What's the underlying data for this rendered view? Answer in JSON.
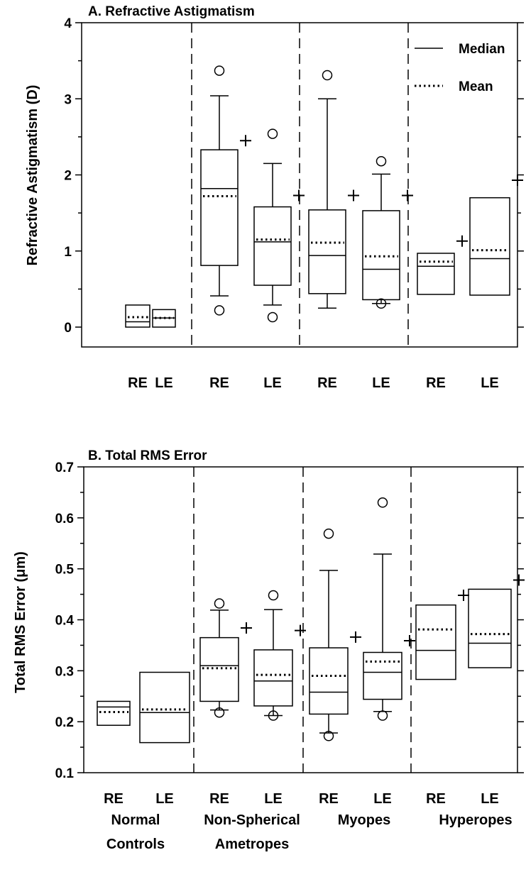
{
  "chart_data": [
    {
      "type": "box",
      "title": "A. Refractive Astigmatism",
      "ylabel": "Refractive Astigmatism (D)",
      "ylim": [
        -0.25,
        4
      ],
      "yticks": [
        0,
        1,
        2,
        3,
        4
      ],
      "categories": [
        "RE",
        "LE",
        "RE",
        "LE",
        "RE",
        "LE",
        "RE",
        "LE"
      ],
      "legend": {
        "median": "Median",
        "mean": "Mean",
        "position": "top-right"
      },
      "boxes": [
        {
          "q1": 0.0,
          "median": 0.07,
          "q3": 0.29,
          "mean": 0.13,
          "whisker_low": null,
          "whisker_high": null,
          "outliers": [],
          "max_marker": null
        },
        {
          "q1": 0.0,
          "median": 0.12,
          "q3": 0.23,
          "mean": 0.12,
          "whisker_low": null,
          "whisker_high": null,
          "outliers": [],
          "max_marker": null
        },
        {
          "q1": 0.81,
          "median": 1.82,
          "q3": 2.33,
          "mean": 1.72,
          "whisker_low": 0.41,
          "whisker_high": 3.04,
          "outliers": [
            0.22,
            3.37
          ],
          "max_marker": 2.45
        },
        {
          "q1": 0.55,
          "median": 1.12,
          "q3": 1.58,
          "mean": 1.15,
          "whisker_low": 0.29,
          "whisker_high": 2.15,
          "outliers": [
            0.13,
            2.54
          ],
          "max_marker": 1.73
        },
        {
          "q1": 0.44,
          "median": 0.94,
          "q3": 1.54,
          "mean": 1.11,
          "whisker_low": 0.25,
          "whisker_high": 3.0,
          "outliers": [
            3.31
          ],
          "max_marker": 1.73
        },
        {
          "q1": 0.36,
          "median": 0.76,
          "q3": 1.53,
          "mean": 0.93,
          "whisker_low": 0.31,
          "whisker_high": 2.01,
          "outliers": [
            0.31,
            2.18
          ],
          "max_marker": 1.73
        },
        {
          "q1": 0.43,
          "median": 0.8,
          "q3": 0.97,
          "mean": 0.86,
          "whisker_low": null,
          "whisker_high": null,
          "outliers": [],
          "max_marker": 1.13
        },
        {
          "q1": 0.42,
          "median": 0.9,
          "q3": 1.7,
          "mean": 1.01,
          "whisker_low": null,
          "whisker_high": null,
          "outliers": [],
          "max_marker": 1.93
        }
      ]
    },
    {
      "type": "box",
      "title": "B. Total RMS Error",
      "ylabel": "Total RMS Error (μm)",
      "ylim": [
        0.1,
        0.7
      ],
      "yticks": [
        "0.1",
        "0.2",
        "0.3",
        "0.4",
        "0.5",
        "0.6",
        "0.7"
      ],
      "categories": [
        "RE",
        "LE",
        "RE",
        "LE",
        "RE",
        "LE",
        "RE",
        "LE"
      ],
      "groups": [
        {
          "line1": "Normal",
          "line2": "Controls"
        },
        {
          "line1": "Non-Spherical",
          "line2": "Ametropes"
        },
        {
          "line1": "Myopes",
          "line2": ""
        },
        {
          "line1": "Hyperopes",
          "line2": ""
        }
      ],
      "boxes": [
        {
          "q1": 0.193,
          "median": 0.229,
          "q3": 0.24,
          "mean": 0.219,
          "whisker_low": null,
          "whisker_high": null,
          "outliers": [],
          "max_marker": null
        },
        {
          "q1": 0.159,
          "median": 0.218,
          "q3": 0.297,
          "mean": 0.224,
          "whisker_low": null,
          "whisker_high": null,
          "outliers": [],
          "max_marker": null
        },
        {
          "q1": 0.24,
          "median": 0.31,
          "q3": 0.365,
          "mean": 0.305,
          "whisker_low": 0.223,
          "whisker_high": 0.419,
          "outliers": [
            0.218,
            0.432
          ],
          "max_marker": 0.384
        },
        {
          "q1": 0.231,
          "median": 0.28,
          "q3": 0.341,
          "mean": 0.292,
          "whisker_low": 0.212,
          "whisker_high": 0.42,
          "outliers": [
            0.212,
            0.448
          ],
          "max_marker": 0.379
        },
        {
          "q1": 0.215,
          "median": 0.258,
          "q3": 0.345,
          "mean": 0.29,
          "whisker_low": 0.178,
          "whisker_high": 0.497,
          "outliers": [
            0.172,
            0.569
          ],
          "max_marker": 0.366
        },
        {
          "q1": 0.244,
          "median": 0.297,
          "q3": 0.336,
          "mean": 0.318,
          "whisker_low": 0.22,
          "whisker_high": 0.529,
          "outliers": [
            0.212,
            0.63
          ],
          "max_marker": 0.359
        },
        {
          "q1": 0.283,
          "median": 0.34,
          "q3": 0.429,
          "mean": 0.381,
          "whisker_low": null,
          "whisker_high": null,
          "outliers": [],
          "max_marker": 0.448
        },
        {
          "q1": 0.306,
          "median": 0.354,
          "q3": 0.46,
          "mean": 0.372,
          "whisker_low": null,
          "whisker_high": null,
          "outliers": [],
          "max_marker": 0.478
        }
      ]
    }
  ]
}
